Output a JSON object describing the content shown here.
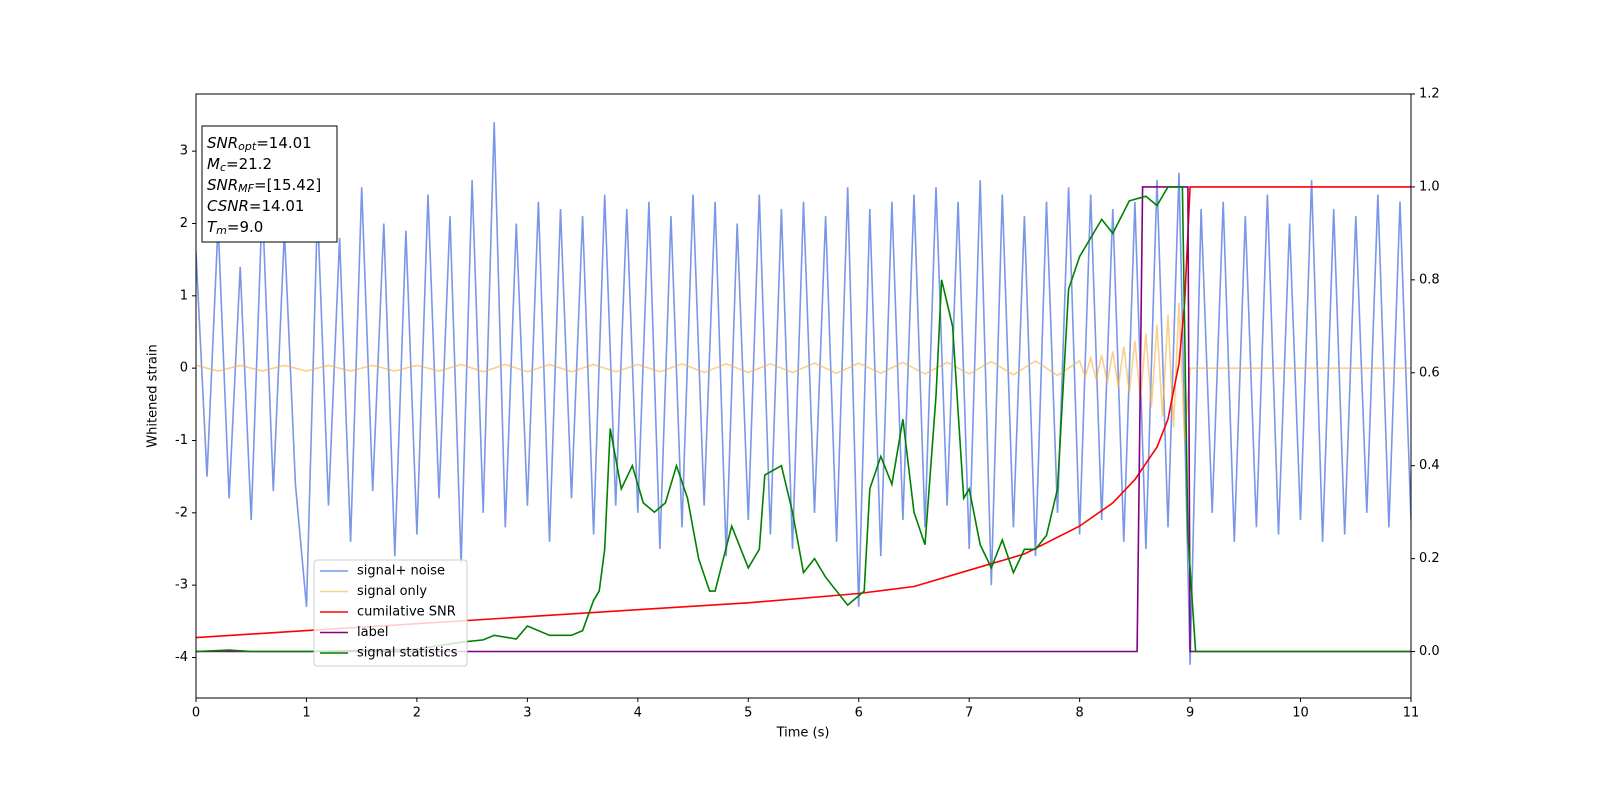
{
  "chart_data": {
    "type": "line",
    "xlabel": "Time (s)",
    "ylabel": "Whitened strain",
    "xlim": [
      0,
      11
    ],
    "xticks": [
      0,
      1,
      2,
      3,
      4,
      5,
      6,
      7,
      8,
      9,
      10,
      11
    ],
    "ylim": [
      -4.56,
      3.79
    ],
    "yticks": [
      -4,
      -3,
      -2,
      -1,
      0,
      1,
      2,
      3
    ],
    "y2lim": [
      -0.1,
      1.2
    ],
    "y2ticks": [
      {
        "value": 0,
        "label": "0.0"
      },
      {
        "value": 0.2,
        "label": "0.2"
      },
      {
        "value": 0.4,
        "label": "0.4"
      },
      {
        "value": 0.6,
        "label": "0.6"
      },
      {
        "value": 0.8,
        "label": "0.8"
      },
      {
        "value": 1,
        "label": "1.0"
      },
      {
        "value": 1.2,
        "label": "1.2"
      }
    ],
    "legend": "lower left",
    "annotations": [
      {
        "text": "SNR",
        "sub": "opt",
        "suffix": "=14.01"
      },
      {
        "text": "M",
        "sub": "c",
        "suffix": "=21.2"
      },
      {
        "text": "SNR",
        "sub": "MF",
        "suffix": "=[15.42]"
      },
      {
        "text": "CSNR",
        "suffix": "=14.01"
      },
      {
        "text": "T",
        "sub": "m",
        "suffix": "=9.0"
      }
    ],
    "series": [
      {
        "name": "signal+ noise",
        "color": "#6a8be6",
        "opacity": 0.9,
        "x": [
          0,
          0.1,
          0.2,
          0.3,
          0.4,
          0.5,
          0.6,
          0.7,
          0.8,
          0.9,
          1,
          1.1,
          1.2,
          1.3,
          1.4,
          1.5,
          1.6,
          1.7,
          1.8,
          1.9,
          2,
          2.1,
          2.2,
          2.3,
          2.4,
          2.5,
          2.6,
          2.7,
          2.8,
          2.9,
          3,
          3.1,
          3.2,
          3.3,
          3.4,
          3.5,
          3.6,
          3.7,
          3.8,
          3.9,
          4,
          4.1,
          4.2,
          4.3,
          4.4,
          4.5,
          4.6,
          4.7,
          4.8,
          4.9,
          5,
          5.1,
          5.2,
          5.3,
          5.4,
          5.5,
          5.6,
          5.7,
          5.8,
          5.9,
          6,
          6.1,
          6.2,
          6.3,
          6.4,
          6.5,
          6.6,
          6.7,
          6.8,
          6.9,
          7,
          7.1,
          7.2,
          7.3,
          7.4,
          7.5,
          7.6,
          7.7,
          7.8,
          7.9,
          8,
          8.1,
          8.2,
          8.3,
          8.4,
          8.5,
          8.6,
          8.7,
          8.8,
          8.9,
          9,
          9.1,
          9.2,
          9.3,
          9.4,
          9.5,
          9.6,
          9.7,
          9.8,
          9.9,
          10,
          10.1,
          10.2,
          10.3,
          10.4,
          10.5,
          10.6,
          10.7,
          10.8,
          10.9,
          11
        ],
        "values": [
          1.6,
          -1.5,
          2.0,
          -1.8,
          1.4,
          -2.1,
          2.3,
          -1.7,
          1.9,
          -1.6,
          -3.3,
          2.2,
          -1.9,
          1.8,
          -2.4,
          2.5,
          -1.7,
          2.0,
          -2.6,
          1.9,
          -2.3,
          2.4,
          -1.8,
          2.1,
          -2.7,
          2.6,
          -2.0,
          3.4,
          -2.2,
          2.0,
          -1.9,
          2.3,
          -2.4,
          2.2,
          -1.8,
          2.1,
          -2.3,
          2.4,
          -1.9,
          2.2,
          -2.0,
          2.3,
          -2.5,
          2.1,
          -2.2,
          2.4,
          -1.9,
          2.3,
          -2.6,
          2.0,
          -2.1,
          2.4,
          -2.3,
          2.2,
          -2.5,
          2.3,
          -2.0,
          2.1,
          -2.4,
          2.5,
          -3.3,
          2.2,
          -2.6,
          2.3,
          -2.1,
          2.4,
          -2.2,
          2.5,
          -1.9,
          2.3,
          -2.5,
          2.6,
          -3.0,
          2.4,
          -2.2,
          2.1,
          -2.6,
          2.3,
          -2.0,
          2.5,
          -2.3,
          2.4,
          -2.1,
          2.2,
          -2.4,
          2.3,
          -2.5,
          2.6,
          -2.2,
          2.7,
          -4.1,
          2.2,
          -2.0,
          2.3,
          -2.4,
          2.1,
          -2.2,
          2.4,
          -2.3,
          2.0,
          -2.1,
          2.6,
          -2.4,
          2.2,
          -2.3,
          2.1,
          -2.0,
          2.4,
          -2.2,
          2.3,
          -2.1
        ]
      },
      {
        "name": "signal only",
        "color": "#f5b042",
        "opacity": 0.6,
        "x": [
          0,
          0.2,
          0.4,
          0.6,
          0.8,
          1,
          1.2,
          1.4,
          1.6,
          1.8,
          2,
          2.2,
          2.4,
          2.6,
          2.8,
          3,
          3.2,
          3.4,
          3.6,
          3.8,
          4,
          4.2,
          4.4,
          4.6,
          4.8,
          5,
          5.2,
          5.4,
          5.6,
          5.8,
          6,
          6.2,
          6.4,
          6.6,
          6.8,
          7,
          7.2,
          7.4,
          7.6,
          7.8,
          8,
          8.05,
          8.1,
          8.15,
          8.2,
          8.25,
          8.3,
          8.35,
          8.4,
          8.45,
          8.5,
          8.55,
          8.6,
          8.65,
          8.7,
          8.75,
          8.8,
          8.85,
          8.9,
          8.95,
          9,
          11
        ],
        "values": [
          0.04,
          -0.04,
          0.04,
          -0.04,
          0.04,
          -0.04,
          0.04,
          -0.04,
          0.04,
          -0.04,
          0.04,
          -0.04,
          0.05,
          -0.05,
          0.05,
          -0.05,
          0.05,
          -0.05,
          0.05,
          -0.05,
          0.05,
          -0.05,
          0.06,
          -0.06,
          0.06,
          -0.06,
          0.06,
          -0.06,
          0.07,
          -0.07,
          0.07,
          -0.07,
          0.08,
          -0.08,
          0.08,
          -0.08,
          0.09,
          -0.09,
          0.1,
          -0.1,
          0.1,
          -0.12,
          0.14,
          -0.16,
          0.18,
          -0.2,
          0.23,
          -0.26,
          0.3,
          -0.34,
          0.38,
          -0.43,
          0.48,
          -0.54,
          0.6,
          -0.67,
          0.74,
          -0.82,
          0.9,
          -1.0,
          0,
          0
        ]
      },
      {
        "name": "cumilative SNR",
        "color": "#ff0000",
        "axis": "y2",
        "x": [
          0,
          1,
          2,
          3,
          4,
          5,
          6,
          6.5,
          7,
          7.5,
          8,
          8.3,
          8.5,
          8.7,
          8.8,
          8.9,
          8.95,
          9,
          11
        ],
        "values": [
          0.03,
          0.045,
          0.06,
          0.075,
          0.09,
          0.105,
          0.125,
          0.14,
          0.175,
          0.21,
          0.27,
          0.32,
          0.37,
          0.44,
          0.5,
          0.62,
          0.75,
          1.0,
          1.0
        ]
      },
      {
        "name": "label",
        "color": "#800080",
        "axis": "y2",
        "x": [
          0,
          8.52,
          8.57,
          8.98,
          9.0,
          11
        ],
        "values": [
          0,
          0,
          1,
          1,
          0,
          0
        ]
      },
      {
        "name": "signal statistics",
        "color": "#008000",
        "axis": "y2",
        "x": [
          0,
          0.3,
          0.5,
          1,
          2,
          2.4,
          2.6,
          2.7,
          2.9,
          3.0,
          3.2,
          3.4,
          3.5,
          3.6,
          3.65,
          3.7,
          3.75,
          3.85,
          3.95,
          4.05,
          4.15,
          4.25,
          4.35,
          4.45,
          4.55,
          4.65,
          4.7,
          4.85,
          5.0,
          5.1,
          5.15,
          5.3,
          5.4,
          5.5,
          5.6,
          5.7,
          5.9,
          6.05,
          6.1,
          6.2,
          6.3,
          6.4,
          6.5,
          6.6,
          6.7,
          6.75,
          6.85,
          6.95,
          7.0,
          7.1,
          7.2,
          7.3,
          7.4,
          7.5,
          7.6,
          7.7,
          7.8,
          7.9,
          8.0,
          8.2,
          8.3,
          8.45,
          8.6,
          8.7,
          8.8,
          8.93,
          8.98,
          9.05,
          11
        ],
        "values": [
          0,
          0.003,
          0,
          0,
          0.005,
          0.02,
          0.025,
          0.035,
          0.027,
          0.055,
          0.035,
          0.035,
          0.045,
          0.11,
          0.13,
          0.22,
          0.48,
          0.35,
          0.4,
          0.32,
          0.3,
          0.32,
          0.4,
          0.33,
          0.2,
          0.13,
          0.13,
          0.27,
          0.18,
          0.22,
          0.38,
          0.4,
          0.3,
          0.17,
          0.2,
          0.16,
          0.1,
          0.13,
          0.35,
          0.42,
          0.36,
          0.5,
          0.3,
          0.23,
          0.55,
          0.8,
          0.7,
          0.33,
          0.35,
          0.23,
          0.18,
          0.24,
          0.17,
          0.22,
          0.22,
          0.25,
          0.35,
          0.78,
          0.85,
          0.93,
          0.9,
          0.97,
          0.98,
          0.96,
          1.0,
          1.0,
          0.25,
          0,
          0
        ]
      }
    ]
  }
}
